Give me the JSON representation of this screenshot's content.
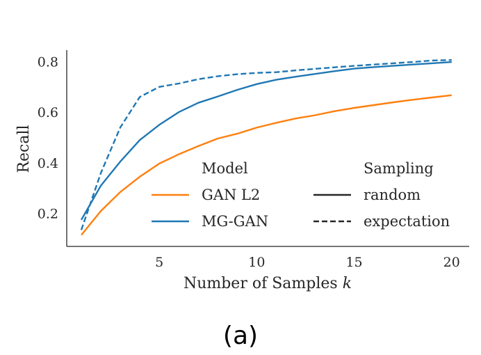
{
  "caption": "(a)",
  "chart_data": {
    "type": "line",
    "xlabel": "Number of Samples",
    "xlabel_var": "k",
    "ylabel": "Recall",
    "xlim": [
      0.25,
      20.9
    ],
    "ylim": [
      0.07,
      0.845
    ],
    "xticks": [
      5,
      10,
      15,
      20
    ],
    "yticks": [
      0.2,
      0.4,
      0.6,
      0.8
    ],
    "x": [
      1,
      2,
      3,
      4,
      5,
      6,
      7,
      8,
      9,
      10,
      11,
      12,
      13,
      14,
      15,
      16,
      17,
      18,
      19,
      20
    ],
    "series": [
      {
        "model": "GAN L2",
        "sampling": "random",
        "color": "#ff7f0e",
        "dash": "solid",
        "values": [
          0.115,
          0.21,
          0.285,
          0.345,
          0.397,
          0.434,
          0.466,
          0.496,
          0.515,
          0.539,
          0.558,
          0.575,
          0.588,
          0.604,
          0.617,
          0.628,
          0.639,
          0.649,
          0.658,
          0.667
        ]
      },
      {
        "model": "MG-GAN",
        "sampling": "random",
        "color": "#1f77b4",
        "dash": "solid",
        "values": [
          0.175,
          0.31,
          0.405,
          0.49,
          0.55,
          0.6,
          0.637,
          0.662,
          0.688,
          0.711,
          0.728,
          0.74,
          0.751,
          0.762,
          0.772,
          0.778,
          0.783,
          0.788,
          0.793,
          0.798
        ]
      },
      {
        "model": "MG-GAN",
        "sampling": "expectation",
        "color": "#1f77b4",
        "dash": "dashed",
        "values": [
          0.135,
          0.36,
          0.54,
          0.66,
          0.7,
          0.713,
          0.73,
          0.742,
          0.75,
          0.755,
          0.758,
          0.765,
          0.771,
          0.777,
          0.783,
          0.788,
          0.793,
          0.798,
          0.804,
          0.806
        ]
      }
    ],
    "legend": {
      "position": "lower-right",
      "model_title": "Model",
      "sampling_title": "Sampling",
      "models": [
        {
          "label": "GAN L2",
          "color": "#ff7f0e"
        },
        {
          "label": "MG-GAN",
          "color": "#1f77b4"
        }
      ],
      "samplings": [
        {
          "label": "random",
          "dash": "solid"
        },
        {
          "label": "expectation",
          "dash": "dashed"
        }
      ]
    }
  }
}
